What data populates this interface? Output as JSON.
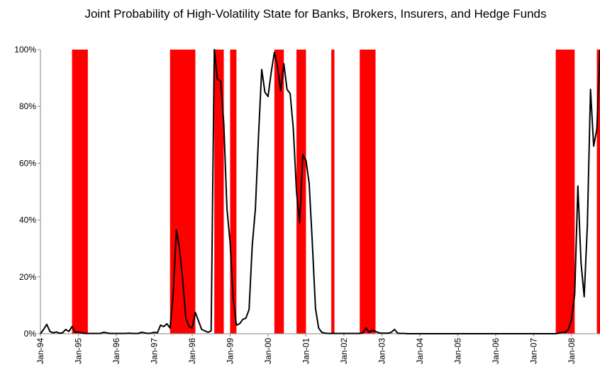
{
  "chart_data": {
    "type": "line",
    "title": "Joint Probability of High-Volatility State for Banks, Brokers, Insurers, and Hedge Funds",
    "x": [
      "Jan-94",
      "Feb-94",
      "Mar-94",
      "Apr-94",
      "May-94",
      "Jun-94",
      "Jul-94",
      "Aug-94",
      "Sep-94",
      "Oct-94",
      "Nov-94",
      "Dec-94",
      "Jan-95",
      "Feb-95",
      "Mar-95",
      "Apr-95",
      "May-95",
      "Jun-95",
      "Jul-95",
      "Aug-95",
      "Sep-95",
      "Oct-95",
      "Nov-95",
      "Dec-95",
      "Jan-96",
      "Feb-96",
      "Mar-96",
      "Apr-96",
      "May-96",
      "Jun-96",
      "Jul-96",
      "Aug-96",
      "Sep-96",
      "Oct-96",
      "Nov-96",
      "Dec-96",
      "Jan-97",
      "Feb-97",
      "Mar-97",
      "Apr-97",
      "May-97",
      "Jun-97",
      "Jul-97",
      "Aug-97",
      "Sep-97",
      "Oct-97",
      "Nov-97",
      "Dec-97",
      "Jan-98",
      "Feb-98",
      "Mar-98",
      "Apr-98",
      "May-98",
      "Jun-98",
      "Jul-98",
      "Aug-98",
      "Sep-98",
      "Oct-98",
      "Nov-98",
      "Dec-98",
      "Jan-99",
      "Feb-99",
      "Mar-99",
      "Apr-99",
      "May-99",
      "Jun-99",
      "Jul-99",
      "Aug-99",
      "Sep-99",
      "Oct-99",
      "Nov-99",
      "Dec-99",
      "Jan-00",
      "Feb-00",
      "Mar-00",
      "Apr-00",
      "May-00",
      "Jun-00",
      "Jul-00",
      "Aug-00",
      "Sep-00",
      "Oct-00",
      "Nov-00",
      "Dec-00",
      "Jan-01",
      "Feb-01",
      "Mar-01",
      "Apr-01",
      "May-01",
      "Jun-01",
      "Jul-01",
      "Aug-01",
      "Sep-01",
      "Oct-01",
      "Nov-01",
      "Dec-01",
      "Jan-02",
      "Feb-02",
      "Mar-02",
      "Apr-02",
      "May-02",
      "Jun-02",
      "Jul-02",
      "Aug-02",
      "Sep-02",
      "Oct-02",
      "Nov-02",
      "Dec-02",
      "Jan-03",
      "Feb-03",
      "Mar-03",
      "Apr-03",
      "May-03",
      "Jun-03",
      "Jul-03",
      "Aug-03",
      "Sep-03",
      "Oct-03",
      "Nov-03",
      "Dec-03",
      "Jan-04",
      "Feb-04",
      "Mar-04",
      "Apr-04",
      "May-04",
      "Jun-04",
      "Jul-04",
      "Aug-04",
      "Sep-04",
      "Oct-04",
      "Nov-04",
      "Dec-04",
      "Jan-05",
      "Feb-05",
      "Mar-05",
      "Apr-05",
      "May-05",
      "Jun-05",
      "Jul-05",
      "Aug-05",
      "Sep-05",
      "Oct-05",
      "Nov-05",
      "Dec-05",
      "Jan-06",
      "Feb-06",
      "Mar-06",
      "Apr-06",
      "May-06",
      "Jun-06",
      "Jul-06",
      "Aug-06",
      "Sep-06",
      "Oct-06",
      "Nov-06",
      "Dec-06",
      "Jan-07",
      "Feb-07",
      "Mar-07",
      "Apr-07",
      "May-07",
      "Jun-07",
      "Jul-07",
      "Aug-07",
      "Sep-07",
      "Oct-07",
      "Nov-07",
      "Dec-07",
      "Jan-08",
      "Feb-08",
      "Mar-08",
      "Apr-08",
      "May-08",
      "Jun-08",
      "Jul-08",
      "Aug-08",
      "Sep-08",
      "Oct-08"
    ],
    "values": [
      0,
      1.5,
      3.3,
      0.8,
      0.3,
      0.6,
      0.2,
      0.3,
      1.5,
      0.8,
      2.5,
      0.5,
      0.6,
      0.3,
      0.1,
      0.1,
      0.1,
      0.1,
      0.1,
      0.1,
      0.5,
      0.3,
      0.1,
      0.1,
      0.1,
      0.1,
      0.1,
      0.1,
      0.2,
      0.1,
      0.1,
      0.1,
      0.5,
      0.3,
      0.1,
      0.2,
      0.5,
      0.3,
      3,
      2.5,
      3.5,
      2,
      14,
      36.5,
      30,
      19,
      5.5,
      2.5,
      2,
      7.5,
      4.5,
      1.5,
      1,
      0.5,
      1,
      100,
      89.5,
      89,
      74,
      44,
      32,
      12,
      3,
      3.5,
      5,
      5.5,
      8.5,
      31,
      44,
      70,
      93,
      85,
      83.5,
      92,
      99,
      94,
      85.5,
      95,
      86,
      84.5,
      72,
      50,
      39,
      63,
      61,
      53,
      32,
      9,
      2,
      0.5,
      0.2,
      0.1,
      0.1,
      0.1,
      0.1,
      0.1,
      0.1,
      0.1,
      0.1,
      0.1,
      0.1,
      0.1,
      0.3,
      2,
      0.5,
      1.2,
      0.8,
      0.3,
      0.2,
      0.2,
      0.2,
      0.5,
      1.5,
      0.2,
      0.1,
      0.1,
      0,
      0,
      0,
      0,
      0,
      0,
      0,
      0,
      0,
      0,
      0,
      0,
      0,
      0,
      0,
      0,
      0,
      0,
      0,
      0,
      0,
      0,
      0,
      0,
      0,
      0,
      0,
      0,
      0,
      0,
      0,
      0,
      0,
      0,
      0,
      0,
      0,
      0,
      0,
      0,
      0,
      0,
      0,
      0,
      0,
      0,
      0,
      0,
      0.2,
      0.5,
      0.5,
      1.5,
      5,
      14,
      52,
      25,
      13,
      38,
      86,
      66,
      72,
      100
    ],
    "color": "#000000",
    "ylim": [
      0,
      100
    ],
    "yticks": [
      {
        "value": 0,
        "label": "0%"
      },
      {
        "value": 20,
        "label": "20%"
      },
      {
        "value": 40,
        "label": "40%"
      },
      {
        "value": 60,
        "label": "60%"
      },
      {
        "value": 80,
        "label": "80%"
      },
      {
        "value": 100,
        "label": "100%"
      }
    ],
    "shaded_color": "#ff0000",
    "shaded_regions": [
      {
        "start": "Nov-94",
        "end": "Apr-95"
      },
      {
        "start": "Jun-97",
        "end": "Feb-98"
      },
      {
        "start": "Aug-98",
        "end": "Nov-98"
      },
      {
        "start": "Jan-99",
        "end": "Mar-99"
      },
      {
        "start": "Mar-00",
        "end": "Jun-00"
      },
      {
        "start": "Oct-00",
        "end": "Jan-01"
      },
      {
        "start": "Sep-01",
        "end": "Oct-01"
      },
      {
        "start": "Jun-02",
        "end": "Nov-02"
      },
      {
        "start": "Aug-07",
        "end": "Feb-08"
      },
      {
        "start": "Sep-08",
        "end": "Oct-08"
      }
    ],
    "grid": false
  }
}
